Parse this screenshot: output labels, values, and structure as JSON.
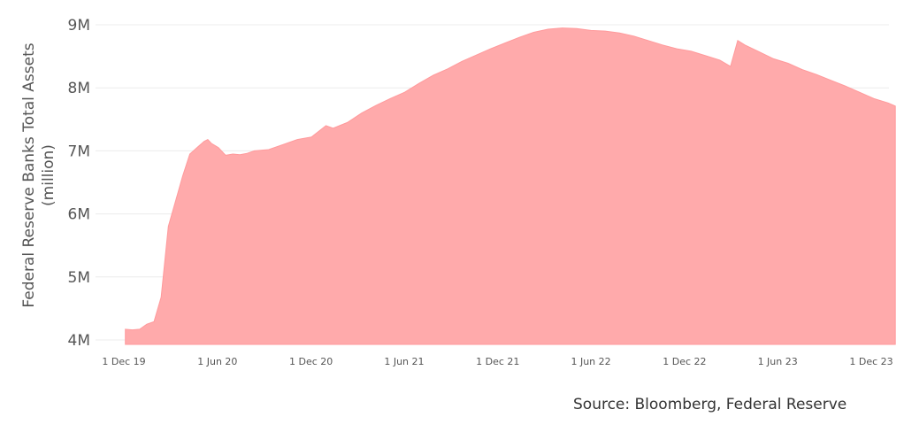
{
  "chart_data": {
    "type": "area",
    "title": "",
    "xlabel": "",
    "ylabel": "Federal Reserve Banks Total Assets",
    "ylabel_unit": "(million)",
    "ylim": [
      4,
      9
    ],
    "grid": true,
    "yticks": [
      {
        "value": 4,
        "label": "4M"
      },
      {
        "value": 5,
        "label": "5M"
      },
      {
        "value": 6,
        "label": "6M"
      },
      {
        "value": 7,
        "label": "7M"
      },
      {
        "value": 8,
        "label": "8M"
      },
      {
        "value": 9,
        "label": "9M"
      }
    ],
    "xticks": [
      {
        "date": "2019-12-01",
        "label": "1 Dec 19"
      },
      {
        "date": "2020-06-01",
        "label": "1 Jun 20"
      },
      {
        "date": "2020-12-01",
        "label": "1 Dec 20"
      },
      {
        "date": "2021-06-01",
        "label": "1 Jun 21"
      },
      {
        "date": "2021-12-01",
        "label": "1 Dec 21"
      },
      {
        "date": "2022-06-01",
        "label": "1 Jun 22"
      },
      {
        "date": "2022-12-01",
        "label": "1 Dec 22"
      },
      {
        "date": "2023-06-01",
        "label": "1 Jun 23"
      },
      {
        "date": "2023-12-01",
        "label": "1 Dec 23"
      }
    ],
    "series": [
      {
        "color": "#ffaaab",
        "points": [
          [
            "2019-12-04",
            4.17
          ],
          [
            "2019-12-18",
            4.16
          ],
          [
            "2020-01-01",
            4.17
          ],
          [
            "2020-01-15",
            4.25
          ],
          [
            "2020-01-29",
            4.29
          ],
          [
            "2020-02-12",
            4.68
          ],
          [
            "2020-02-26",
            5.8
          ],
          [
            "2020-03-11",
            6.2
          ],
          [
            "2020-03-25",
            6.6
          ],
          [
            "2020-04-08",
            6.95
          ],
          [
            "2020-04-22",
            7.05
          ],
          [
            "2020-05-06",
            7.15
          ],
          [
            "2020-05-13",
            7.18
          ],
          [
            "2020-05-20",
            7.12
          ],
          [
            "2020-06-03",
            7.05
          ],
          [
            "2020-06-17",
            6.93
          ],
          [
            "2020-07-01",
            6.95
          ],
          [
            "2020-07-15",
            6.94
          ],
          [
            "2020-07-29",
            6.96
          ],
          [
            "2020-08-12",
            7.0
          ],
          [
            "2020-09-09",
            7.02
          ],
          [
            "2020-10-07",
            7.1
          ],
          [
            "2020-11-04",
            7.18
          ],
          [
            "2020-12-02",
            7.22
          ],
          [
            "2020-12-30",
            7.4
          ],
          [
            "2021-01-13",
            7.36
          ],
          [
            "2021-02-10",
            7.45
          ],
          [
            "2021-03-10",
            7.6
          ],
          [
            "2021-04-07",
            7.72
          ],
          [
            "2021-05-05",
            7.83
          ],
          [
            "2021-06-02",
            7.93
          ],
          [
            "2021-06-30",
            8.07
          ],
          [
            "2021-07-28",
            8.2
          ],
          [
            "2021-08-25",
            8.3
          ],
          [
            "2021-09-22",
            8.42
          ],
          [
            "2021-10-20",
            8.52
          ],
          [
            "2021-11-17",
            8.62
          ],
          [
            "2021-12-15",
            8.71
          ],
          [
            "2022-01-12",
            8.8
          ],
          [
            "2022-02-09",
            8.88
          ],
          [
            "2022-03-09",
            8.93
          ],
          [
            "2022-04-06",
            8.95
          ],
          [
            "2022-05-04",
            8.94
          ],
          [
            "2022-06-01",
            8.91
          ],
          [
            "2022-06-29",
            8.9
          ],
          [
            "2022-07-27",
            8.87
          ],
          [
            "2022-08-24",
            8.82
          ],
          [
            "2022-09-21",
            8.75
          ],
          [
            "2022-10-19",
            8.68
          ],
          [
            "2022-11-16",
            8.62
          ],
          [
            "2022-12-14",
            8.58
          ],
          [
            "2023-01-11",
            8.51
          ],
          [
            "2023-02-08",
            8.44
          ],
          [
            "2023-03-01",
            8.34
          ],
          [
            "2023-03-15",
            8.75
          ],
          [
            "2023-03-29",
            8.68
          ],
          [
            "2023-04-26",
            8.57
          ],
          [
            "2023-05-24",
            8.46
          ],
          [
            "2023-06-21",
            8.39
          ],
          [
            "2023-07-19",
            8.29
          ],
          [
            "2023-08-16",
            8.21
          ],
          [
            "2023-09-13",
            8.12
          ],
          [
            "2023-10-11",
            8.03
          ],
          [
            "2023-11-08",
            7.93
          ],
          [
            "2023-12-06",
            7.83
          ],
          [
            "2024-01-03",
            7.76
          ],
          [
            "2024-01-17",
            7.71
          ]
        ]
      }
    ]
  },
  "source_text": "Source: Bloomberg, Federal Reserve"
}
